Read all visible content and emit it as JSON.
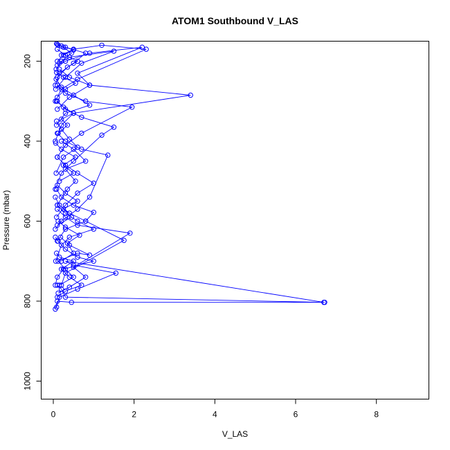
{
  "chart_data": {
    "type": "line",
    "title": "ATOM1 Southbound V_LAS",
    "xlabel": "V_LAS",
    "ylabel": "Pressure (mbar)",
    "xlim": [
      -0.3,
      9.3
    ],
    "ylim": [
      1045,
      150
    ],
    "y_reversed": true,
    "xticks": [
      0,
      2,
      4,
      6,
      8
    ],
    "yticks": [
      200,
      400,
      600,
      800,
      1000
    ],
    "grid": false,
    "color": "#0000ff",
    "series": [
      {
        "values": [
          [
            0.05,
            820
          ],
          [
            0.1,
            800
          ],
          [
            0.45,
            803
          ],
          [
            6.72,
            803
          ],
          [
            0.3,
            790
          ],
          [
            0.2,
            770
          ],
          [
            0.1,
            760
          ]
        ]
      },
      {
        "values": [
          [
            0.08,
            815
          ],
          [
            0.15,
            790
          ],
          [
            0.6,
            770
          ],
          [
            1.55,
            730
          ],
          [
            0.5,
            710
          ],
          [
            0.3,
            700
          ],
          [
            6.7,
            803
          ]
        ]
      },
      {
        "values": [
          [
            0.1,
            790
          ],
          [
            0.3,
            775
          ],
          [
            0.7,
            760
          ],
          [
            0.4,
            740
          ],
          [
            0.2,
            720
          ],
          [
            0.5,
            700
          ],
          [
            0.15,
            690
          ],
          [
            0.08,
            680
          ]
        ]
      },
      {
        "values": [
          [
            0.05,
            760
          ],
          [
            0.1,
            740
          ],
          [
            0.25,
            720
          ],
          [
            1.0,
            700
          ],
          [
            0.6,
            690
          ],
          [
            0.3,
            670
          ],
          [
            0.12,
            650
          ],
          [
            0.05,
            640
          ]
        ]
      },
      {
        "values": [
          [
            0.12,
            780
          ],
          [
            0.4,
            765
          ],
          [
            0.8,
            740
          ],
          [
            0.5,
            715
          ],
          [
            1.9,
            630
          ],
          [
            0.6,
            610
          ],
          [
            0.3,
            590
          ],
          [
            0.1,
            570
          ]
        ]
      },
      {
        "values": [
          [
            0.2,
            760
          ],
          [
            0.3,
            730
          ],
          [
            1.75,
            648
          ],
          [
            0.8,
            600
          ],
          [
            0.4,
            580
          ],
          [
            0.15,
            560
          ],
          [
            0.05,
            540
          ]
        ]
      },
      {
        "values": [
          [
            0.06,
            700
          ],
          [
            0.2,
            660
          ],
          [
            0.4,
            640
          ],
          [
            1.0,
            620
          ],
          [
            0.6,
            600
          ],
          [
            0.3,
            580
          ],
          [
            0.1,
            560
          ]
        ]
      },
      {
        "values": [
          [
            0.1,
            650
          ],
          [
            0.3,
            620
          ],
          [
            0.8,
            600
          ],
          [
            1.0,
            578
          ],
          [
            0.5,
            560
          ],
          [
            0.2,
            540
          ],
          [
            0.08,
            520
          ]
        ]
      },
      {
        "values": [
          [
            0.05,
            620
          ],
          [
            0.2,
            600
          ],
          [
            0.6,
            570
          ],
          [
            0.9,
            540
          ],
          [
            1.35,
            435
          ],
          [
            0.7,
            420
          ],
          [
            0.3,
            400
          ],
          [
            0.1,
            380
          ]
        ]
      },
      {
        "values": [
          [
            0.08,
            590
          ],
          [
            0.3,
            560
          ],
          [
            0.6,
            530
          ],
          [
            1.0,
            505
          ],
          [
            0.6,
            480
          ],
          [
            0.3,
            460
          ],
          [
            0.1,
            440
          ]
        ]
      },
      {
        "values": [
          [
            0.1,
            560
          ],
          [
            0.35,
            520
          ],
          [
            0.55,
            500
          ],
          [
            0.3,
            470
          ],
          [
            0.8,
            450
          ],
          [
            0.5,
            420
          ],
          [
            0.2,
            400
          ]
        ]
      },
      {
        "values": [
          [
            0.05,
            520
          ],
          [
            0.2,
            480
          ],
          [
            0.5,
            450
          ],
          [
            1.2,
            385
          ],
          [
            1.5,
            365
          ],
          [
            0.7,
            340
          ],
          [
            0.3,
            320
          ],
          [
            0.1,
            300
          ]
        ]
      },
      {
        "values": [
          [
            0.07,
            480
          ],
          [
            0.25,
            440
          ],
          [
            0.6,
            415
          ],
          [
            0.4,
            395
          ],
          [
            0.2,
            370
          ],
          [
            0.08,
            350
          ]
        ]
      },
      {
        "values": [
          [
            0.1,
            440
          ],
          [
            0.3,
            410
          ],
          [
            0.7,
            380
          ],
          [
            1.95,
            315
          ],
          [
            0.8,
            300
          ],
          [
            0.3,
            280
          ],
          [
            0.1,
            260
          ]
        ]
      },
      {
        "values": [
          [
            0.05,
            400
          ],
          [
            0.2,
            360
          ],
          [
            0.5,
            330
          ],
          [
            3.4,
            285
          ],
          [
            0.9,
            260
          ],
          [
            0.4,
            240
          ],
          [
            0.15,
            220
          ]
        ]
      },
      {
        "values": [
          [
            0.08,
            360
          ],
          [
            0.3,
            330
          ],
          [
            0.9,
            310
          ],
          [
            0.5,
            285
          ],
          [
            0.2,
            265
          ],
          [
            0.07,
            245
          ]
        ]
      },
      {
        "values": [
          [
            0.1,
            320
          ],
          [
            0.4,
            290
          ],
          [
            0.9,
            260
          ],
          [
            0.6,
            230
          ],
          [
            2.2,
            165
          ],
          [
            0.9,
            180
          ],
          [
            0.3,
            200
          ],
          [
            0.1,
            210
          ]
        ]
      },
      {
        "values": [
          [
            0.05,
            300
          ],
          [
            0.2,
            270
          ],
          [
            0.6,
            245
          ],
          [
            2.3,
            170
          ],
          [
            1.2,
            160
          ],
          [
            0.5,
            170
          ],
          [
            0.2,
            185
          ]
        ]
      },
      {
        "values": [
          [
            0.06,
            270
          ],
          [
            0.3,
            240
          ],
          [
            0.7,
            205
          ],
          [
            1.5,
            175
          ],
          [
            0.4,
            190
          ],
          [
            0.15,
            205
          ]
        ]
      },
      {
        "values": [
          [
            0.1,
            240
          ],
          [
            0.35,
            215
          ],
          [
            0.6,
            200
          ],
          [
            0.3,
            185
          ],
          [
            0.1,
            170
          ]
        ]
      },
      {
        "values": [
          [
            0.07,
            220
          ],
          [
            0.2,
            200
          ],
          [
            0.45,
            180
          ],
          [
            0.25,
            165
          ],
          [
            0.1,
            158
          ]
        ]
      },
      {
        "values": [
          [
            0.05,
            260
          ],
          [
            0.15,
            230
          ],
          [
            0.5,
            205
          ],
          [
            0.8,
            180
          ],
          [
            0.3,
            165
          ],
          [
            0.12,
            160
          ]
        ]
      },
      {
        "values": [
          [
            0.1,
            200
          ],
          [
            0.25,
            185
          ],
          [
            0.5,
            172
          ],
          [
            0.2,
            162
          ],
          [
            0.08,
            156
          ]
        ]
      },
      {
        "values": [
          [
            0.15,
            760
          ],
          [
            0.5,
            740
          ],
          [
            0.3,
            720
          ],
          [
            0.12,
            700
          ],
          [
            0.6,
            680
          ],
          [
            0.9,
            685
          ],
          [
            0.4,
            660
          ],
          [
            0.18,
            640
          ]
        ]
      },
      {
        "values": [
          [
            0.2,
            700
          ],
          [
            0.5,
            680
          ],
          [
            0.35,
            655
          ],
          [
            0.65,
            635
          ],
          [
            0.3,
            615
          ],
          [
            0.12,
            600
          ]
        ]
      },
      {
        "values": [
          [
            0.1,
            610
          ],
          [
            0.45,
            590
          ],
          [
            0.25,
            570
          ],
          [
            0.6,
            550
          ],
          [
            0.3,
            530
          ],
          [
            0.1,
            510
          ]
        ]
      },
      {
        "values": [
          [
            0.15,
            500
          ],
          [
            0.5,
            480
          ],
          [
            0.25,
            460
          ],
          [
            0.55,
            440
          ],
          [
            0.2,
            420
          ],
          [
            0.06,
            405
          ]
        ]
      },
      {
        "values": [
          [
            0.12,
            380
          ],
          [
            0.35,
            360
          ],
          [
            0.2,
            345
          ],
          [
            0.5,
            330
          ],
          [
            0.25,
            315
          ],
          [
            0.08,
            300
          ]
        ]
      },
      {
        "values": [
          [
            0.1,
            290
          ],
          [
            0.3,
            270
          ],
          [
            0.55,
            255
          ],
          [
            0.25,
            240
          ],
          [
            0.08,
            228
          ]
        ]
      }
    ]
  }
}
